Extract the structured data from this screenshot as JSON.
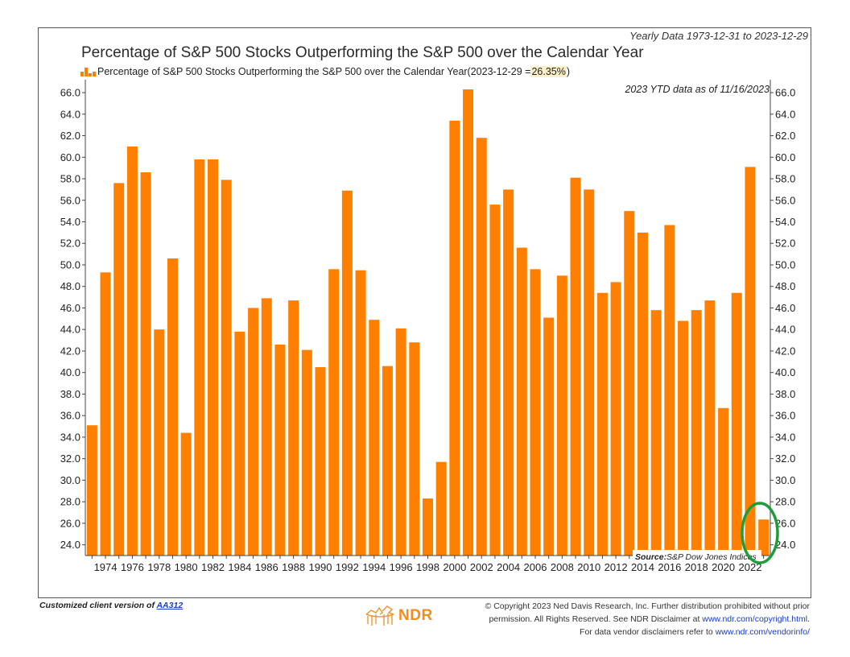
{
  "header": {
    "range_note": "Yearly Data 1973-12-31 to 2023-12-29",
    "title": "Percentage of S&P 500 Stocks Outperforming the S&P 500 over the Calendar Year",
    "legend_text": "Percentage of S&P 500 Stocks Outperforming the S&P 500 over the Calendar Year(2023-12-29 = ",
    "legend_value": "26.35%",
    "legend_close": ")",
    "ytd_note": "2023 YTD data as of 11/16/2023"
  },
  "source": {
    "label": "Source:",
    "text": "S&P Dow Jones Indices"
  },
  "footer": {
    "left_prefix": "Customized client version of ",
    "left_link": "AA312",
    "logo_text": "NDR",
    "copyright_line1": "© Copyright 2023 Ned Davis Research, Inc. Further distribution prohibited without prior",
    "copyright_line2_prefix": "permission. All Rights Reserved. See NDR Disclaimer at ",
    "copyright_line2_link": "www.ndr.com/copyright.html",
    "copyright_line2_suffix": ".",
    "copyright_line3_prefix": "For data vendor disclaimers refer to ",
    "copyright_line3_link": "www.ndr.com/vendorinfo/"
  },
  "colors": {
    "bar": "#FF8000",
    "highlight_circle": "#1E9E3A",
    "ndr_orange": "#F28C1E"
  },
  "chart_data": {
    "type": "bar",
    "title": "Percentage of S&P 500 Stocks Outperforming the S&P 500 over the Calendar Year",
    "x": [
      1973,
      1974,
      1975,
      1976,
      1977,
      1978,
      1979,
      1980,
      1981,
      1982,
      1983,
      1984,
      1985,
      1986,
      1987,
      1988,
      1989,
      1990,
      1991,
      1992,
      1993,
      1994,
      1995,
      1996,
      1997,
      1998,
      1999,
      2000,
      2001,
      2002,
      2003,
      2004,
      2005,
      2006,
      2007,
      2008,
      2009,
      2010,
      2011,
      2012,
      2013,
      2014,
      2015,
      2016,
      2017,
      2018,
      2019,
      2020,
      2021,
      2022,
      2023
    ],
    "values": [
      35.1,
      49.3,
      57.6,
      61.0,
      58.6,
      44.0,
      50.6,
      34.4,
      59.8,
      59.8,
      57.9,
      43.8,
      46.0,
      46.9,
      42.6,
      46.7,
      42.1,
      40.5,
      49.6,
      56.9,
      49.5,
      44.9,
      40.6,
      44.1,
      42.8,
      28.3,
      31.7,
      63.4,
      66.3,
      61.8,
      55.6,
      57.0,
      51.6,
      49.6,
      45.1,
      49.0,
      58.1,
      57.0,
      47.4,
      48.4,
      55.0,
      53.0,
      45.8,
      53.7,
      44.8,
      45.8,
      46.7,
      36.7,
      47.4,
      59.1,
      26.35
    ],
    "x_tick_labels": [
      "1974",
      "1976",
      "1978",
      "1980",
      "1982",
      "1984",
      "1986",
      "1988",
      "1990",
      "1992",
      "1994",
      "1996",
      "1998",
      "2000",
      "2002",
      "2004",
      "2006",
      "2008",
      "2010",
      "2012",
      "2014",
      "2016",
      "2018",
      "2020",
      "2022"
    ],
    "y_tick_labels": [
      "66.0",
      "64.0",
      "62.0",
      "60.0",
      "58.0",
      "56.0",
      "54.0",
      "52.0",
      "50.0",
      "48.0",
      "46.0",
      "44.0",
      "42.0",
      "40.0",
      "38.0",
      "36.0",
      "34.0",
      "32.0",
      "30.0",
      "28.0",
      "26.0",
      "24.0"
    ],
    "y_ticks": [
      66,
      64,
      62,
      60,
      58,
      56,
      54,
      52,
      50,
      48,
      46,
      44,
      42,
      40,
      38,
      36,
      34,
      32,
      30,
      28,
      26,
      24
    ],
    "ylim": [
      23.0,
      67.2
    ],
    "axes": "left-and-right",
    "grid": false,
    "legend_position": "top-left",
    "highlighted_year": 2023
  }
}
